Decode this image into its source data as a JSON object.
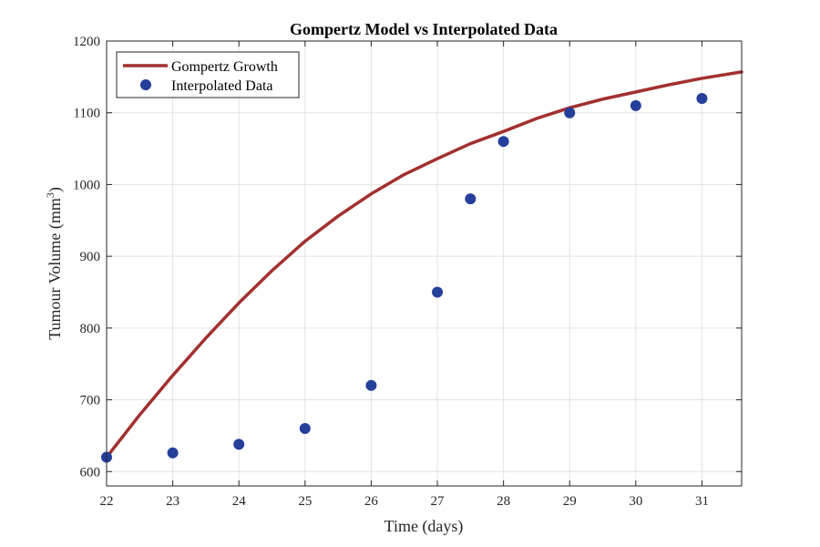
{
  "chart_data": {
    "type": "line",
    "title": "Gompertz Model vs Interpolated Data",
    "xlabel": "Time (days)",
    "ylabel": "Tumour Volume (mm",
    "ylabel_superscript": "3",
    "ylabel_suffix": ")",
    "xlim": [
      22,
      31.6
    ],
    "ylim": [
      580,
      1200
    ],
    "xticks": [
      22,
      23,
      24,
      25,
      26,
      27,
      28,
      29,
      30,
      31
    ],
    "yticks": [
      600,
      700,
      800,
      900,
      1000,
      1100,
      1200
    ],
    "grid": true,
    "legend_position": "top-left",
    "series": [
      {
        "name": "Gompertz Growth",
        "kind": "line",
        "color": "#A2302F",
        "x": [
          22,
          22.5,
          23,
          23.5,
          24,
          24.5,
          25,
          25.5,
          26,
          26.5,
          27,
          27.5,
          28,
          28.5,
          29,
          29.5,
          30,
          30.5,
          31,
          31.6
        ],
        "y": [
          620,
          679,
          734,
          786,
          835,
          880,
          921,
          956,
          987,
          1014,
          1036,
          1057,
          1074,
          1092,
          1107,
          1119,
          1129,
          1139,
          1148,
          1157
        ]
      },
      {
        "name": "Interpolated Data",
        "kind": "scatter",
        "color": "#25409A",
        "x": [
          22,
          23,
          24,
          25,
          26,
          27,
          27.5,
          28,
          29,
          30,
          31
        ],
        "y": [
          620,
          626,
          638,
          660,
          720,
          850,
          980,
          1060,
          1100,
          1110,
          1120
        ]
      }
    ]
  }
}
